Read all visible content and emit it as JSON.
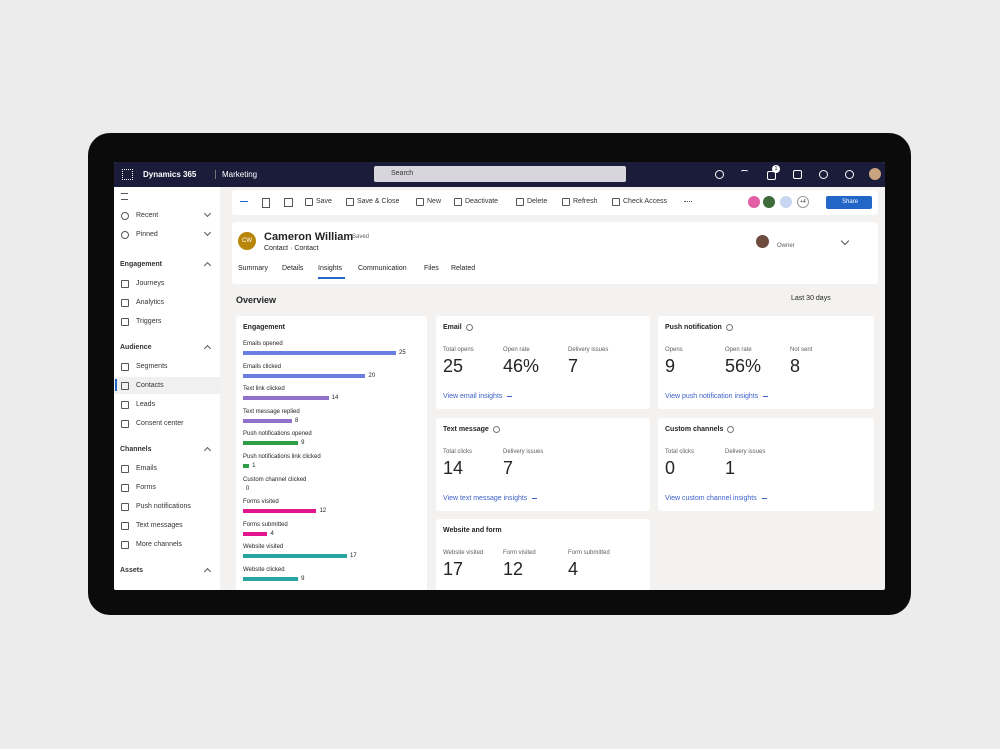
{
  "top_bar": {
    "app": "Dynamics 365",
    "area": "Marketing",
    "search": "Search",
    "notification_count": "1"
  },
  "sidebar": {
    "top": [
      "Recent",
      "Pinned"
    ],
    "groups": [
      {
        "title": "Engagement",
        "items": [
          "Journeys",
          "Analytics",
          "Triggers"
        ]
      },
      {
        "title": "Audience",
        "items": [
          "Segments",
          "Contacts",
          "Leads",
          "Consent center"
        ]
      },
      {
        "title": "Channels",
        "items": [
          "Emails",
          "Forms",
          "Push notifications",
          "Text messages",
          "More channels"
        ]
      },
      {
        "title": "Assets"
      }
    ],
    "selected": "Contacts"
  },
  "command_bar": {
    "actions": [
      "Save",
      "Save & Close",
      "New",
      "Deactivate",
      "Delete",
      "Refresh",
      "Check Access"
    ],
    "more_people": "+4",
    "share": "Share"
  },
  "record": {
    "initials": "CW",
    "name": "Cameron William",
    "status": "Saved",
    "type": "Contact · Contact",
    "owner_label": "Owner"
  },
  "tabs": [
    "Summary",
    "Details",
    "Insights",
    "Communication",
    "Files",
    "Related"
  ],
  "active_tab": "Insights",
  "overview": {
    "title": "Overview",
    "range": "Last 30 days"
  },
  "engagement": {
    "title": "Engagement",
    "items": [
      {
        "label": "Emails opened",
        "value": 25,
        "color": "#6b7fe3"
      },
      {
        "label": "Emails clicked",
        "value": 20,
        "color": "#6b7fe3"
      },
      {
        "label": "Text link clicked",
        "value": 14,
        "color": "#9171c9"
      },
      {
        "label": "Text message replied",
        "value": 8,
        "color": "#9171c9"
      },
      {
        "label": "Push notifications opened",
        "value": 9,
        "color": "#2e9e44"
      },
      {
        "label": "Push notifications link clicked",
        "value": 1,
        "color": "#2e9e44"
      },
      {
        "label": "Custom channel clicked",
        "value": 0,
        "color": "#8a8886"
      },
      {
        "label": "Forms visited",
        "value": 12,
        "color": "#e3158e"
      },
      {
        "label": "Forms submitted",
        "value": 4,
        "color": "#e3158e"
      },
      {
        "label": "Website visited",
        "value": 17,
        "color": "#2aa5a0"
      },
      {
        "label": "Website clicked",
        "value": 9,
        "color": "#2aa5a0"
      }
    ]
  },
  "cards": [
    {
      "title": "Email",
      "stats": [
        {
          "label": "Total opens",
          "value": "25"
        },
        {
          "label": "Open rate",
          "value": "46%"
        },
        {
          "label": "Delivery issues",
          "value": "7"
        }
      ],
      "link": "View email insights"
    },
    {
      "title": "Push notification",
      "stats": [
        {
          "label": "Opens",
          "value": "9"
        },
        {
          "label": "Open rate",
          "value": "56%"
        },
        {
          "label": "Not sent",
          "value": "8"
        }
      ],
      "link": "View push notification insights"
    },
    {
      "title": "Text message",
      "stats": [
        {
          "label": "Total clicks",
          "value": "14"
        },
        {
          "label": "Delivery issues",
          "value": "7"
        }
      ],
      "link": "View text message insights"
    },
    {
      "title": "Custom channels",
      "stats": [
        {
          "label": "Total clicks",
          "value": "0"
        },
        {
          "label": "Delivery issues",
          "value": "1"
        }
      ],
      "link": "View custom channel insights"
    },
    {
      "title": "Website and form",
      "stats": [
        {
          "label": "Website visited",
          "value": "17"
        },
        {
          "label": "Form visited",
          "value": "12"
        },
        {
          "label": "Form submitted",
          "value": "4"
        }
      ]
    }
  ]
}
